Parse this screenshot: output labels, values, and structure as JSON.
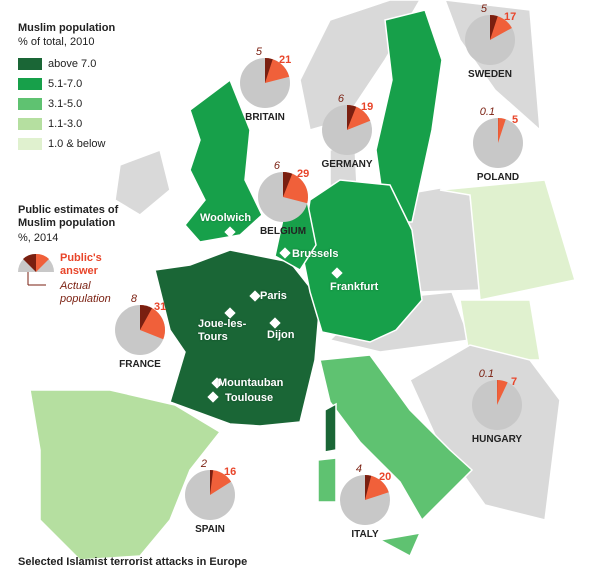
{
  "legend": {
    "title": "Muslim population",
    "subtitle": "% of total, 2010",
    "items": [
      {
        "label": "above 7.0",
        "color": "#1a6636"
      },
      {
        "label": "5.1-7.0",
        "color": "#17a04a"
      },
      {
        "label": "3.1-5.0",
        "color": "#5fc271"
      },
      {
        "label": "1.1-3.0",
        "color": "#b5dfa0"
      },
      {
        "label": "1.0 & below",
        "color": "#e0f1cf"
      }
    ]
  },
  "pie_legend": {
    "title": "Public estimates of Muslim population",
    "subtitle": "%, 2014",
    "answer_label": "Public's answer",
    "actual_label": "Actual population"
  },
  "countries": [
    {
      "name": "BRITAIN",
      "actual": 5,
      "answer": 21
    },
    {
      "name": "SWEDEN",
      "actual": 5,
      "answer": 17
    },
    {
      "name": "GERMANY",
      "actual": 6,
      "answer": 19
    },
    {
      "name": "POLAND",
      "actual": 0.1,
      "answer": 5
    },
    {
      "name": "BELGIUM",
      "actual": 6,
      "answer": 29
    },
    {
      "name": "FRANCE",
      "actual": 8,
      "answer": 31
    },
    {
      "name": "HUNGARY",
      "actual": 0.1,
      "answer": 7
    },
    {
      "name": "SPAIN",
      "actual": 2,
      "answer": 16
    },
    {
      "name": "ITALY",
      "actual": 4,
      "answer": 20
    }
  ],
  "cities": [
    "Woolwich",
    "Brussels",
    "Paris",
    "Frankfurt",
    "Joue-les-Tours",
    "Dijon",
    "Mountauban",
    "Toulouse"
  ],
  "footer": "Selected Islamist terrorist attacks in Europe"
}
